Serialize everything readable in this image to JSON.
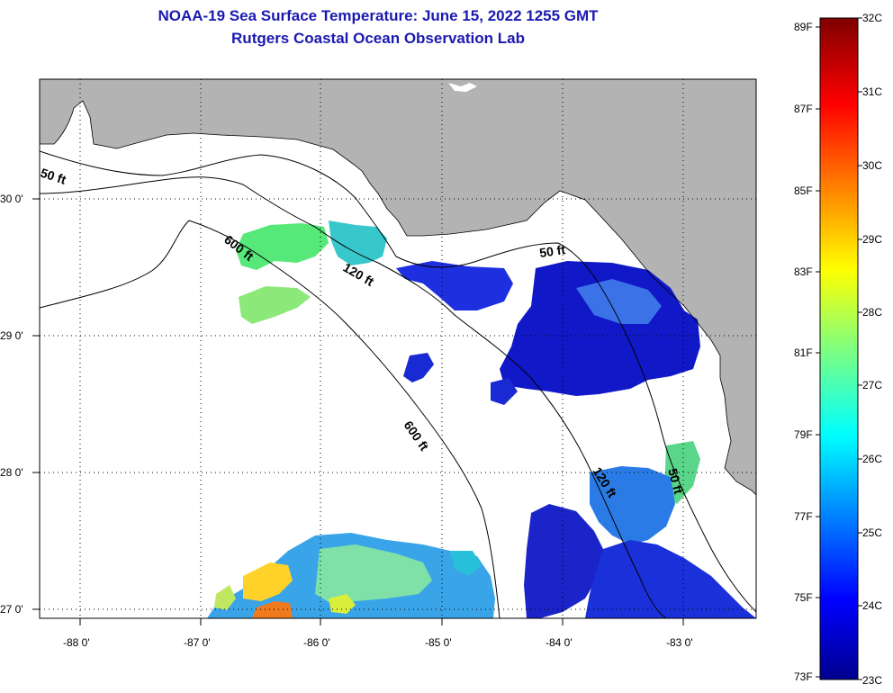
{
  "title": {
    "line1": "NOAA-19 Sea Surface Temperature:  June 15, 2022 1255 GMT",
    "line2": "Rutgers Coastal Ocean Observation Lab"
  },
  "axes": {
    "x_ticks": [
      "-88 0'",
      "-87 0'",
      "-86 0'",
      "-85 0'",
      "-84 0'",
      "-83 0'"
    ],
    "y_ticks": [
      "30 0'",
      "29 0'",
      "28 0'",
      "27 0'"
    ]
  },
  "contour_labels": [
    "50 ft",
    "600 ft",
    "120 ft",
    "50 ft",
    "600 ft",
    "120 ft",
    "50 ft"
  ],
  "colorbar": {
    "fahrenheit": [
      "89F",
      "87F",
      "85F",
      "83F",
      "81F",
      "79F",
      "77F",
      "75F",
      "73F"
    ],
    "celsius": [
      "32C",
      "31C",
      "30C",
      "29C",
      "28C",
      "27C",
      "26C",
      "25C",
      "24C",
      "23C"
    ]
  },
  "colors": {
    "land": "#b3b3b3",
    "ocean_nodata": "#ffffff",
    "title": "#1a1ab0"
  }
}
